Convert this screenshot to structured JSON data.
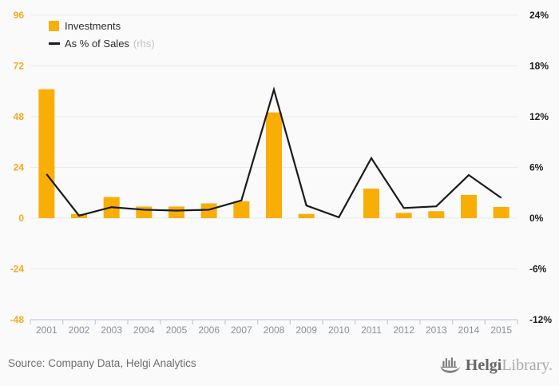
{
  "chart_data": {
    "type": "bar",
    "title": "",
    "categories": [
      "2001",
      "2002",
      "2003",
      "2004",
      "2005",
      "2006",
      "2007",
      "2008",
      "2009",
      "2010",
      "2011",
      "2012",
      "2013",
      "2014",
      "2015"
    ],
    "series": [
      {
        "name": "Investments",
        "type": "bar",
        "axis": "left",
        "values": [
          61,
          2,
          10,
          5.5,
          5.5,
          7,
          8,
          50,
          2,
          0,
          14,
          2.5,
          3.3,
          11,
          5.3
        ]
      },
      {
        "name": "As % of Sales",
        "type": "line",
        "axis": "right",
        "axis_note": "(rhs)",
        "values": [
          5.2,
          0.3,
          1.3,
          1.0,
          0.9,
          1.0,
          2.1,
          15.2,
          1.5,
          0.1,
          7.1,
          1.2,
          1.4,
          5.1,
          2.4
        ]
      }
    ],
    "left_axis": {
      "min": -48,
      "max": 96,
      "ticks": [
        96,
        72,
        48,
        24,
        0,
        -24,
        -48
      ],
      "suffix": ""
    },
    "right_axis": {
      "min": -12,
      "max": 24,
      "ticks": [
        24,
        18,
        12,
        6,
        0,
        -6,
        -12
      ],
      "suffix": "%"
    },
    "grid": true,
    "legend_position": "top-left"
  },
  "colors": {
    "background": "#fafafa",
    "bar": "#F9AE06",
    "line": "#1a1a1a",
    "left_label": "#F7A81E",
    "right_label": "#1c1c1c",
    "x_label": "#8a909c",
    "axis": "#c7cee2",
    "grid": "#ebebeb",
    "legend_text": "#2d2d2d",
    "legend_note": "#c4c4c4",
    "source_text": "#6e6e6e",
    "logo_primary": "#666666",
    "logo_secondary": "#a9a9a9",
    "logo_icon": "#7b7b7b"
  },
  "footer": {
    "source": "Source: Company Data, Helgi Analytics",
    "logo": {
      "primary": "Helgi",
      "secondary": "Library."
    }
  }
}
